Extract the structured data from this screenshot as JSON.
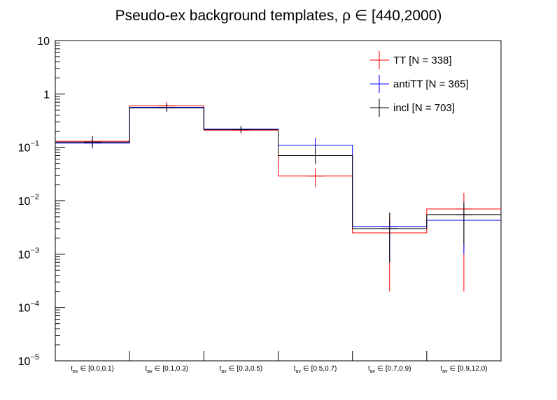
{
  "chart_data": {
    "type": "step-histogram",
    "title": "Pseudo-ex background templates, ρ ∈ [440,2000)",
    "y_scale": "log",
    "ylim": [
      1e-05,
      10
    ],
    "y_ticks": [
      {
        "value": 10,
        "label": "10",
        "exp": ""
      },
      {
        "value": 1,
        "label": "1",
        "exp": ""
      },
      {
        "value": 0.1,
        "label": "10",
        "exp": "−1"
      },
      {
        "value": 0.01,
        "label": "10",
        "exp": "−2"
      },
      {
        "value": 0.001,
        "label": "10",
        "exp": "−3"
      },
      {
        "value": 0.0001,
        "label": "10",
        "exp": "−4"
      },
      {
        "value": 1e-05,
        "label": "10",
        "exp": "−5"
      }
    ],
    "categories": [
      {
        "sub": "av",
        "range": "[0.0,0.1)"
      },
      {
        "sub": "av",
        "range": "[0.1,0.3)"
      },
      {
        "sub": "av",
        "range": "[0.3,0.5)"
      },
      {
        "sub": "av",
        "range": "[0.5,0.7)"
      },
      {
        "sub": "av",
        "range": "[0.7,0.9)"
      },
      {
        "sub": "av",
        "range": "[0.9,12.0)"
      }
    ],
    "category_prefix": "t",
    "category_symbol": "∈",
    "legend_position": "top-right",
    "series": [
      {
        "name": "TT [N = 338]",
        "color": "#ff0000",
        "values": [
          0.13,
          0.6,
          0.21,
          0.029,
          0.0025,
          0.007
        ],
        "err_low": [
          0.1,
          0.51,
          0.18,
          0.018,
          0.0002,
          0.0002
        ],
        "err_high": [
          0.165,
          0.7,
          0.245,
          0.04,
          0.006,
          0.014
        ]
      },
      {
        "name": "antiTT [N = 365]",
        "color": "#0000ff",
        "values": [
          0.12,
          0.56,
          0.22,
          0.11,
          0.0033,
          0.0043
        ],
        "err_low": [
          0.095,
          0.48,
          0.19,
          0.08,
          0.0007,
          0.001
        ],
        "err_high": [
          0.15,
          0.64,
          0.25,
          0.15,
          0.0045,
          0.0085
        ]
      },
      {
        "name": "incl [N = 703]",
        "color": "#000000",
        "values": [
          0.125,
          0.55,
          0.215,
          0.07,
          0.003,
          0.0055
        ],
        "err_low": [
          0.1,
          0.46,
          0.19,
          0.048,
          0.0007,
          0.0015
        ],
        "err_high": [
          0.16,
          0.66,
          0.25,
          0.095,
          0.006,
          0.0095
        ]
      }
    ]
  }
}
